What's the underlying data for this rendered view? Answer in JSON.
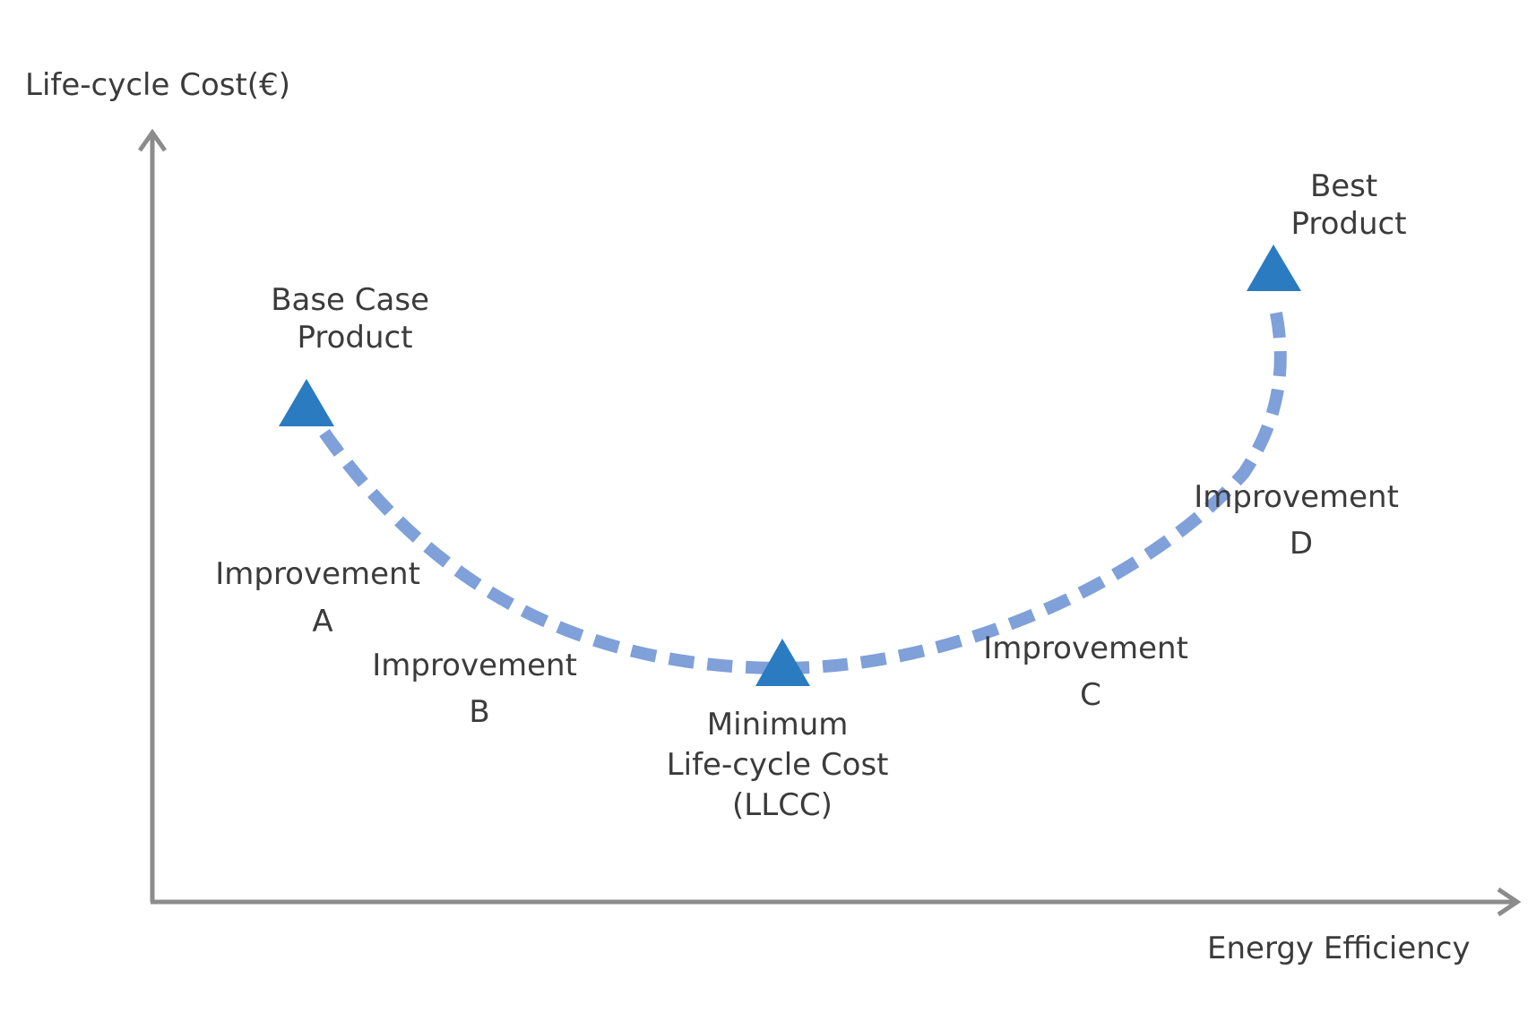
{
  "axes": {
    "y_label": "Life-cycle Cost(€)",
    "x_label": "Energy Efficiency"
  },
  "points": {
    "base_case": [
      "Base Case",
      "Product"
    ],
    "minimum": [
      "Minimum",
      "Life-cycle Cost",
      "(LLCC)"
    ],
    "best": [
      "Best",
      "Product"
    ]
  },
  "improvements": {
    "a": [
      "Improvement",
      "A"
    ],
    "b": [
      "Improvement",
      "B"
    ],
    "c": [
      "Improvement",
      "C"
    ],
    "d": [
      "Improvement",
      "D"
    ]
  },
  "colors": {
    "axis": "#8c8c8c",
    "curve": "#7fa0d8",
    "marker": "#2a7bc0",
    "text": "#3b3b3b"
  }
}
